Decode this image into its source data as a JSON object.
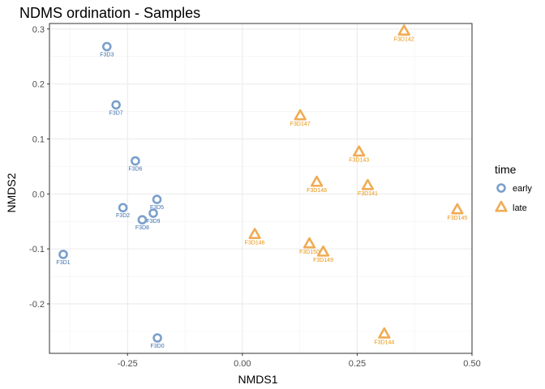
{
  "chart_data": {
    "type": "scatter",
    "title": "NDMS ordination - Samples",
    "xlabel": "NMDS1",
    "ylabel": "NMDS2",
    "xlim": [
      -0.42,
      0.5
    ],
    "ylim": [
      -0.29,
      0.31
    ],
    "x_ticks": [
      -0.25,
      0.0,
      0.25,
      0.5
    ],
    "x_tick_labels": [
      "-0.25",
      "0.00",
      "0.25",
      "0.50"
    ],
    "y_ticks": [
      -0.2,
      -0.1,
      0.0,
      0.1,
      0.2,
      0.3
    ],
    "y_tick_labels": [
      "-0.2",
      "-0.1",
      "0.0",
      "0.1",
      "0.2",
      "0.3"
    ],
    "grid": true,
    "legend": {
      "title": "time",
      "position": "right",
      "entries": [
        {
          "label": "early",
          "shape": "circle",
          "color": "#7b9fcb"
        },
        {
          "label": "late",
          "shape": "triangle",
          "color": "#f0ac55"
        }
      ]
    },
    "series": [
      {
        "name": "early",
        "shape": "circle",
        "color": "#7b9fcb",
        "label_color": "#3f6faf",
        "points": [
          {
            "x": -0.295,
            "y": 0.268,
            "label": "F3D3"
          },
          {
            "x": -0.275,
            "y": 0.162,
            "label": "F3D7"
          },
          {
            "x": -0.233,
            "y": 0.06,
            "label": "F3D6"
          },
          {
            "x": -0.186,
            "y": -0.01,
            "label": "F3D5"
          },
          {
            "x": -0.26,
            "y": -0.025,
            "label": "F3D2"
          },
          {
            "x": -0.194,
            "y": -0.035,
            "label": "F3D9"
          },
          {
            "x": -0.218,
            "y": -0.047,
            "label": "F3D8"
          },
          {
            "x": -0.39,
            "y": -0.11,
            "label": "F3D1"
          },
          {
            "x": -0.185,
            "y": -0.262,
            "label": "F3D0"
          }
        ]
      },
      {
        "name": "late",
        "shape": "triangle",
        "color": "#f0ac55",
        "label_color": "#e8930c",
        "points": [
          {
            "x": 0.352,
            "y": 0.296,
            "label": "F3D142"
          },
          {
            "x": 0.126,
            "y": 0.142,
            "label": "F3D147"
          },
          {
            "x": 0.254,
            "y": 0.076,
            "label": "F3D143"
          },
          {
            "x": 0.162,
            "y": 0.021,
            "label": "F3D148"
          },
          {
            "x": 0.273,
            "y": 0.015,
            "label": "F3D141"
          },
          {
            "x": 0.468,
            "y": -0.029,
            "label": "F3D145"
          },
          {
            "x": 0.027,
            "y": -0.074,
            "label": "F3D146"
          },
          {
            "x": 0.146,
            "y": -0.091,
            "label": "F3D150"
          },
          {
            "x": 0.176,
            "y": -0.106,
            "label": "F3D149"
          },
          {
            "x": 0.309,
            "y": -0.255,
            "label": "F3D144"
          }
        ]
      }
    ]
  }
}
